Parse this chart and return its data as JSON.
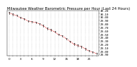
{
  "title": "Milwaukee Weather Barometric Pressure per Hour (Last 24 Hours)",
  "background_color": "#ffffff",
  "plot_bg_color": "#ffffff",
  "grid_color": "#999999",
  "line_color": "#dd0000",
  "marker_color": "#222222",
  "hours": [
    0,
    1,
    2,
    3,
    4,
    5,
    6,
    7,
    8,
    9,
    10,
    11,
    12,
    13,
    14,
    15,
    16,
    17,
    18,
    19,
    20,
    21,
    22,
    23
  ],
  "pressure": [
    30.12,
    30.08,
    30.04,
    29.98,
    29.94,
    29.88,
    29.86,
    29.84,
    29.8,
    29.74,
    29.66,
    29.62,
    29.56,
    29.48,
    29.44,
    29.36,
    29.28,
    29.2,
    29.16,
    29.12,
    29.06,
    29.0,
    28.96,
    28.92
  ],
  "ylim_min": 28.86,
  "ylim_max": 30.2,
  "y_ticks": [
    28.9,
    29.0,
    29.1,
    29.2,
    29.3,
    29.4,
    29.5,
    29.6,
    29.7,
    29.8,
    29.9,
    30.0,
    30.1,
    30.2
  ],
  "title_fontsize": 3.8,
  "tick_fontsize": 3.0,
  "line_width": 0.5,
  "marker_size": 1.8,
  "marker_lw": 0.5
}
